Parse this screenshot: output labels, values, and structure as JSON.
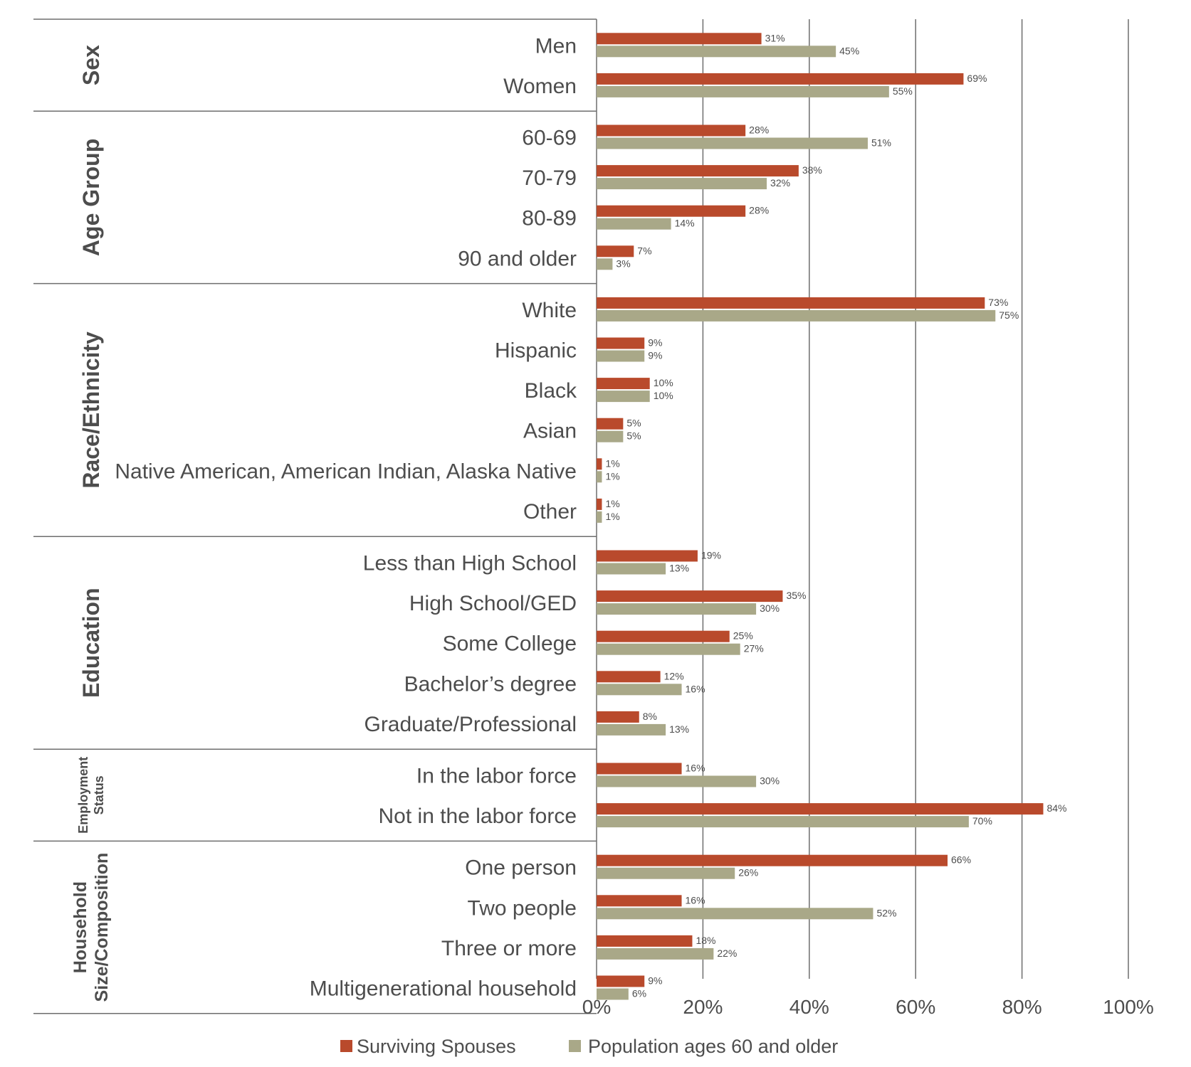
{
  "chart_data": {
    "type": "bar",
    "orientation": "horizontal",
    "xlim": [
      0,
      100
    ],
    "x_ticks": [
      "0%",
      "20%",
      "40%",
      "60%",
      "80%",
      "100%"
    ],
    "grid": true,
    "legend_position": "bottom",
    "series": [
      {
        "name": "Surviving Spouses",
        "color": "#b94a2c"
      },
      {
        "name": "Population ages 60 and older",
        "color": "#a9a888"
      }
    ],
    "groups": [
      {
        "name": "Sex",
        "categories": [
          {
            "label": "Men",
            "values": [
              31,
              45
            ]
          },
          {
            "label": "Women",
            "values": [
              69,
              55
            ]
          }
        ]
      },
      {
        "name": "Age Group",
        "categories": [
          {
            "label": "60-69",
            "values": [
              28,
              51
            ]
          },
          {
            "label": "70-79",
            "values": [
              38,
              32
            ]
          },
          {
            "label": "80-89",
            "values": [
              28,
              14
            ]
          },
          {
            "label": "90 and older",
            "values": [
              7,
              3
            ]
          }
        ]
      },
      {
        "name": "Race/Ethnicity",
        "categories": [
          {
            "label": "White",
            "values": [
              73,
              75
            ]
          },
          {
            "label": "Hispanic",
            "values": [
              9,
              9
            ]
          },
          {
            "label": "Black",
            "values": [
              10,
              10
            ]
          },
          {
            "label": "Asian",
            "values": [
              5,
              5
            ]
          },
          {
            "label": "Native American, American Indian, Alaska Native",
            "values": [
              1,
              1
            ]
          },
          {
            "label": "Other",
            "values": [
              1,
              1
            ]
          }
        ]
      },
      {
        "name": "Education",
        "categories": [
          {
            "label": "Less than High School",
            "values": [
              19,
              13
            ]
          },
          {
            "label": "High School/GED",
            "values": [
              35,
              30
            ]
          },
          {
            "label": "Some College",
            "values": [
              25,
              27
            ]
          },
          {
            "label": "Bachelor’s degree",
            "values": [
              12,
              16
            ]
          },
          {
            "label": "Graduate/Professional",
            "values": [
              8,
              13
            ]
          }
        ]
      },
      {
        "name": "Employment Status",
        "name_lines": [
          "Employment",
          "Status"
        ],
        "categories": [
          {
            "label": "In the labor force",
            "values": [
              16,
              30
            ]
          },
          {
            "label": "Not in the labor force",
            "values": [
              84,
              70
            ]
          }
        ]
      },
      {
        "name": "Household Size/Composition",
        "name_lines": [
          "Household",
          "Size/Composition"
        ],
        "categories": [
          {
            "label": "One person",
            "values": [
              66,
              26
            ]
          },
          {
            "label": "Two people",
            "values": [
              16,
              52
            ]
          },
          {
            "label": "Three or more",
            "values": [
              18,
              22
            ]
          },
          {
            "label": "Multigenerational household",
            "values": [
              9,
              6
            ]
          }
        ]
      }
    ]
  }
}
